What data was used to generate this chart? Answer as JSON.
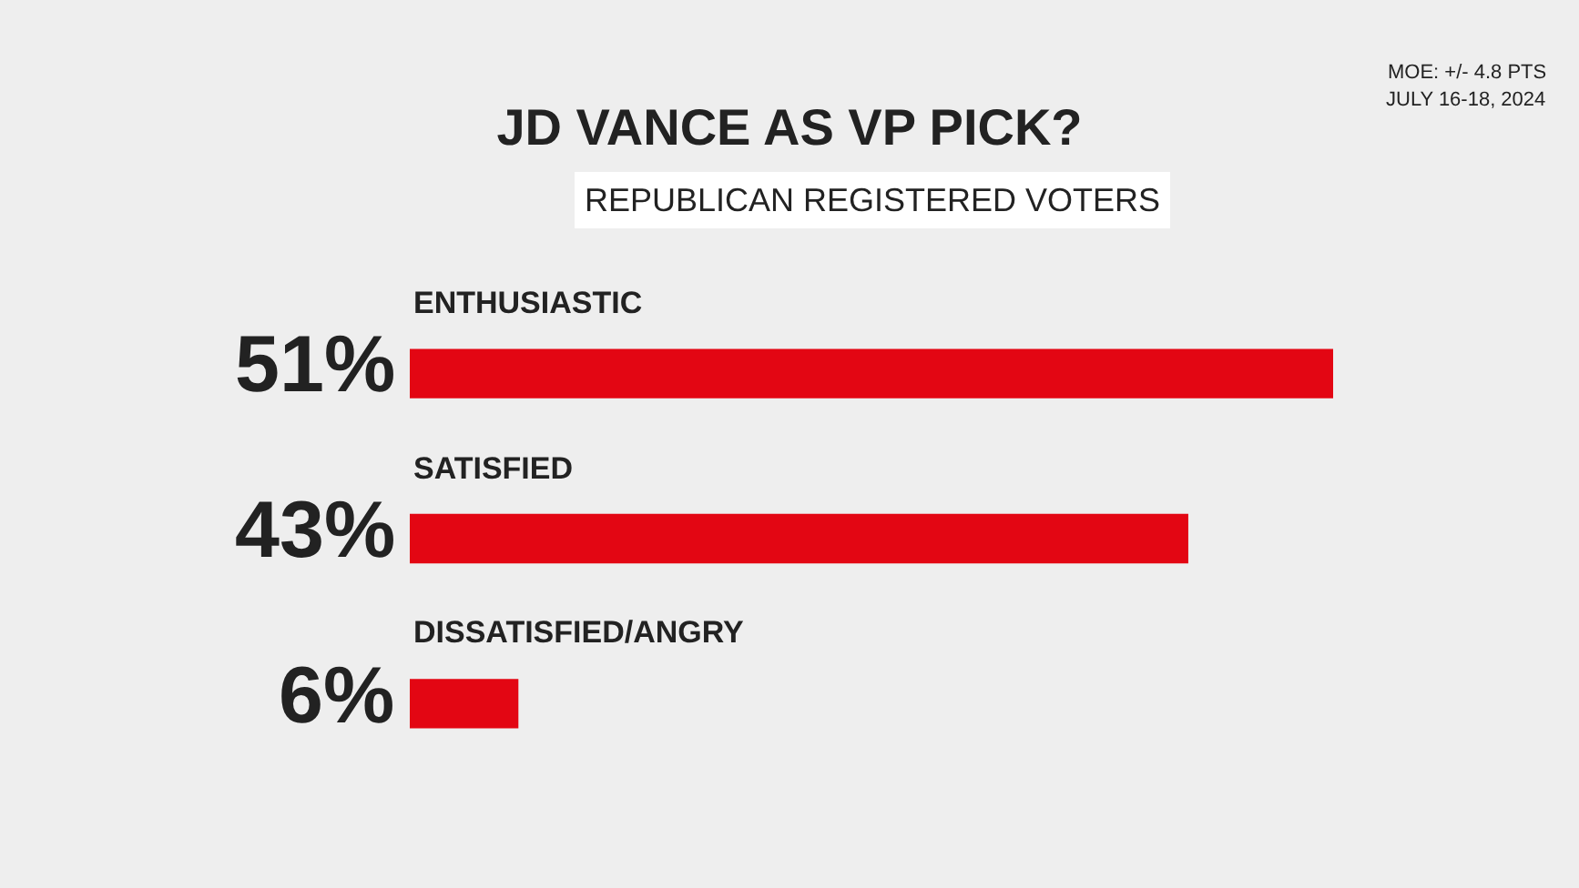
{
  "chart_data": {
    "type": "bar",
    "orientation": "horizontal",
    "title": "JD VANCE AS VP PICK?",
    "subtitle": "REPUBLICAN REGISTERED VOTERS",
    "categories": [
      "ENTHUSIASTIC",
      "SATISFIED",
      "DISSATISFIED/ANGRY"
    ],
    "values": [
      51,
      43,
      6
    ],
    "value_labels": [
      "51%",
      "43%",
      "6%"
    ],
    "color": "#e30613",
    "annotations": [
      "MOE: +/- 4.8 PTS",
      "JULY 16-18, 2024"
    ],
    "legend": false
  }
}
